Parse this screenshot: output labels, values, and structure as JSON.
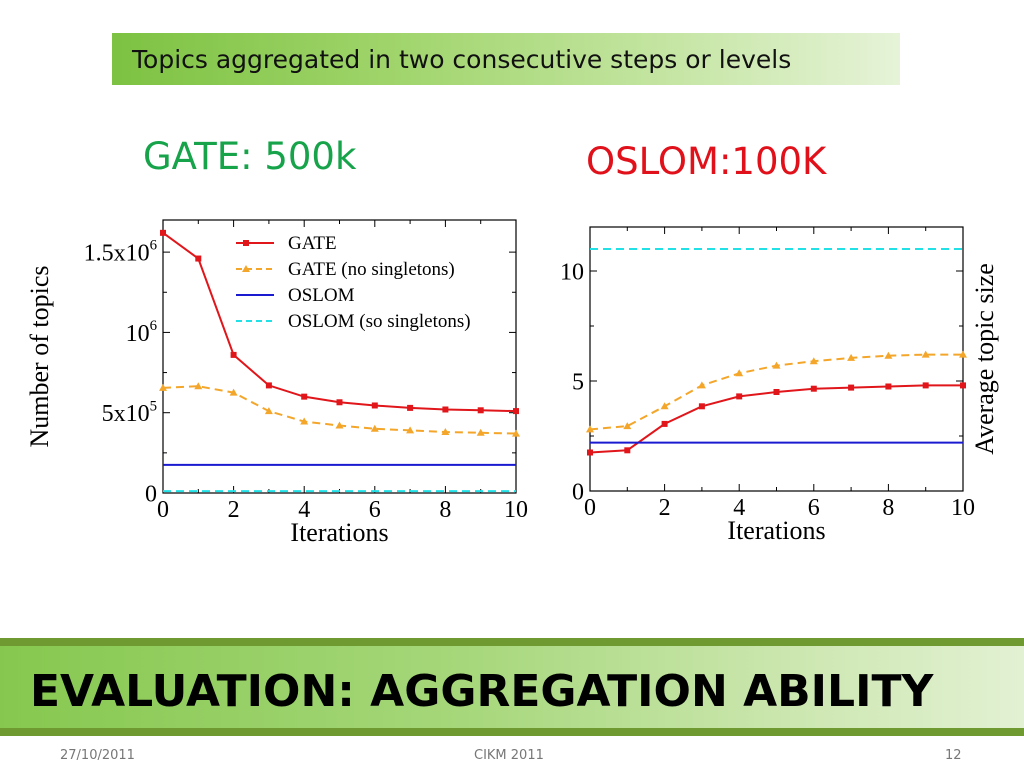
{
  "subtitle": "Topics aggregated in two consecutive steps or levels",
  "captions": {
    "left": "GATE: 500k",
    "left_color": "#16a34a",
    "right": "OSLOM:100K",
    "right_color": "#e0111a"
  },
  "slide_title": "EVALUATION: AGGREGATION ABILITY",
  "footer": {
    "date": "27/10/2011",
    "event": "CIKM 2011",
    "page": "12"
  },
  "colors": {
    "gate": "#e0161b",
    "gate_no_singletons": "#f4a62a",
    "oslom": "#1a1ad1",
    "oslom_singletons": "#22e1e6",
    "accent_green": "#7dc242"
  },
  "chart_data": [
    {
      "type": "line",
      "xlabel": "Iterations",
      "ylabel": "Number of topics",
      "xlim": [
        0,
        10
      ],
      "ylim": [
        0,
        1700000
      ],
      "grid": false,
      "legend_position": "top-right",
      "xticks": [
        0,
        2,
        4,
        6,
        8,
        10
      ],
      "yticks": [
        {
          "value": 0,
          "label": "0"
        },
        {
          "value": 500000,
          "label": "5x10^5"
        },
        {
          "value": 1000000,
          "label": "10^6"
        },
        {
          "value": 1500000,
          "label": "1.5x10^6"
        }
      ],
      "x": [
        0,
        1,
        2,
        3,
        4,
        5,
        6,
        7,
        8,
        9,
        10
      ],
      "series": [
        {
          "name": "GATE",
          "style": "solid-square",
          "color": "#e0161b",
          "values": [
            1620000,
            1460000,
            860000,
            670000,
            600000,
            565000,
            545000,
            530000,
            520000,
            515000,
            510000
          ]
        },
        {
          "name": "GATE (no singletons)",
          "style": "dashed-triangle",
          "color": "#f4a62a",
          "values": [
            655000,
            665000,
            625000,
            510000,
            445000,
            420000,
            400000,
            390000,
            380000,
            375000,
            370000
          ]
        },
        {
          "name": "OSLOM",
          "style": "solid",
          "color": "#1a1ad1",
          "values": [
            175000,
            175000,
            175000,
            175000,
            175000,
            175000,
            175000,
            175000,
            175000,
            175000,
            175000
          ]
        },
        {
          "name": "OSLOM (so singletons)",
          "style": "dashed",
          "color": "#22e1e6",
          "values": [
            12000,
            12000,
            12000,
            12000,
            12000,
            12000,
            12000,
            12000,
            12000,
            12000,
            12000
          ]
        }
      ]
    },
    {
      "type": "line",
      "xlabel": "Iterations",
      "ylabel": "Average topic size",
      "xlim": [
        0,
        10
      ],
      "ylim": [
        0,
        12
      ],
      "grid": false,
      "ylabel_side": "right",
      "xticks": [
        0,
        2,
        4,
        6,
        8,
        10
      ],
      "yticks": [
        {
          "value": 0,
          "label": "0"
        },
        {
          "value": 5,
          "label": "5"
        },
        {
          "value": 10,
          "label": "10"
        }
      ],
      "x": [
        0,
        1,
        2,
        3,
        4,
        5,
        6,
        7,
        8,
        9,
        10
      ],
      "series": [
        {
          "style": "solid-square",
          "color": "#e0161b",
          "values": [
            1.75,
            1.85,
            3.05,
            3.85,
            4.3,
            4.5,
            4.65,
            4.7,
            4.75,
            4.8,
            4.8
          ]
        },
        {
          "style": "dashed-triangle",
          "color": "#f4a62a",
          "values": [
            2.8,
            2.95,
            3.85,
            4.8,
            5.35,
            5.7,
            5.9,
            6.05,
            6.15,
            6.2,
            6.2
          ]
        },
        {
          "style": "solid",
          "color": "#1a1ad1",
          "values": [
            2.2,
            2.2,
            2.2,
            2.2,
            2.2,
            2.2,
            2.2,
            2.2,
            2.2,
            2.2,
            2.2
          ]
        },
        {
          "style": "dashed",
          "color": "#22e1e6",
          "values": [
            11.0,
            11.0,
            11.0,
            11.0,
            11.0,
            11.0,
            11.0,
            11.0,
            11.0,
            11.0,
            11.0
          ]
        }
      ]
    }
  ]
}
